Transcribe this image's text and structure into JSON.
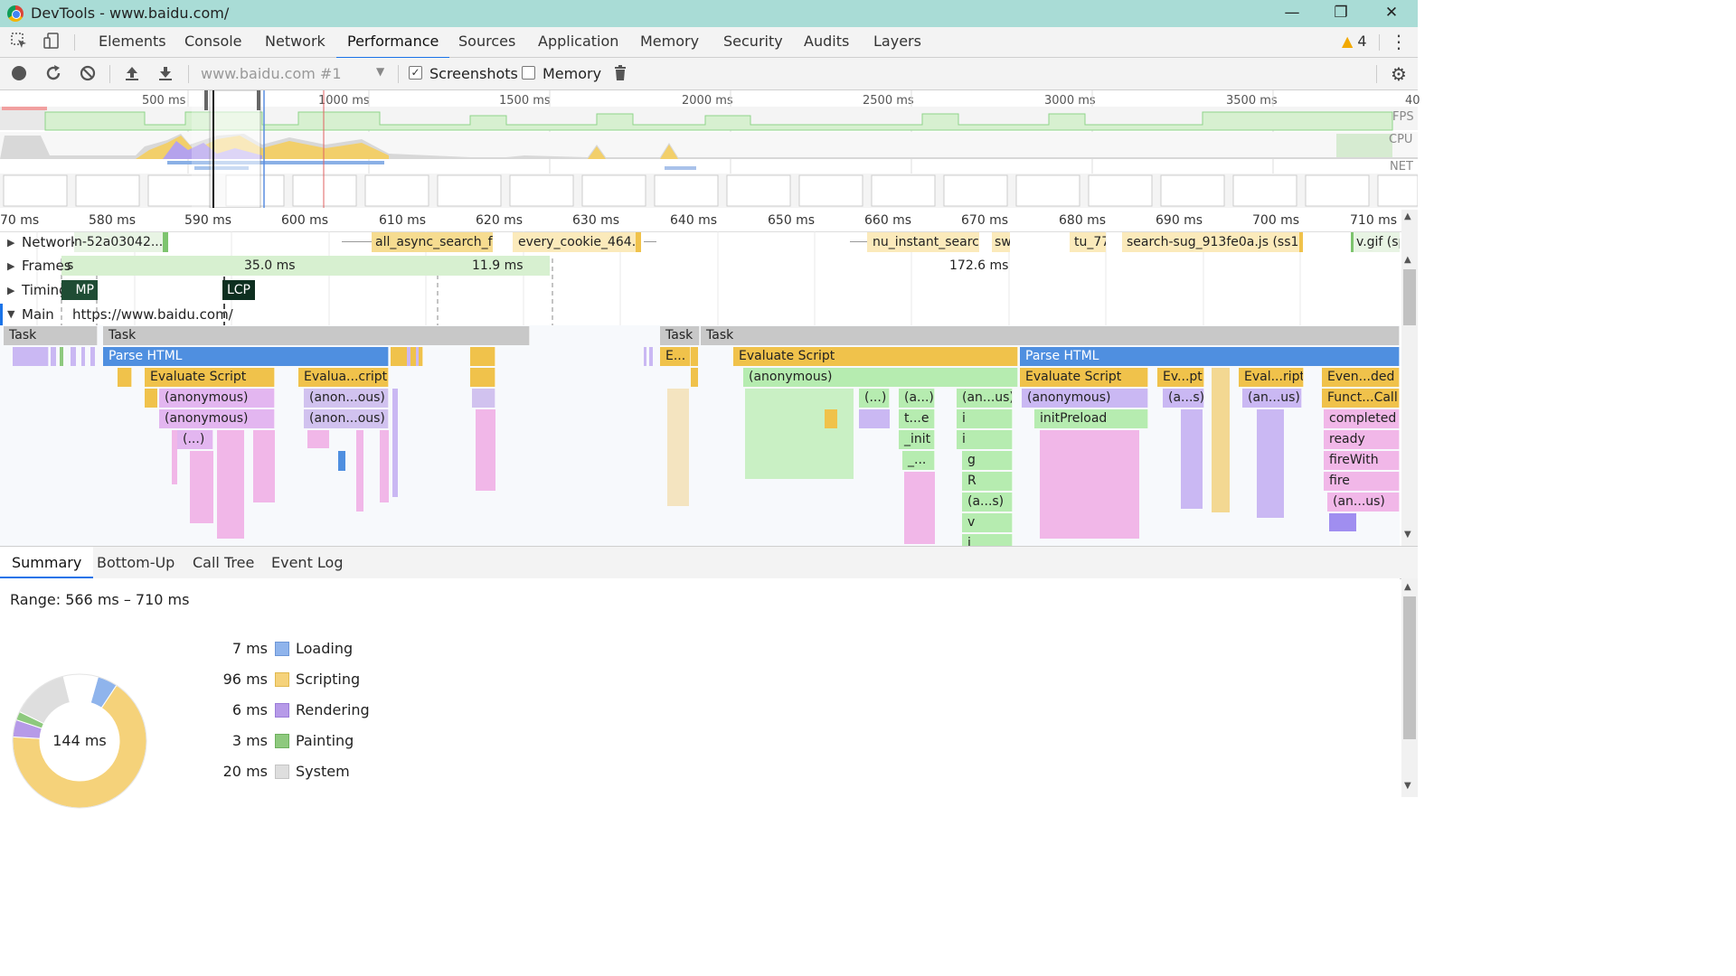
{
  "window": {
    "title": "DevTools - www.baidu.com/",
    "minimize": "—",
    "maximize": "❐",
    "close": "✕"
  },
  "tabs": [
    "Elements",
    "Console",
    "Network",
    "Performance",
    "Sources",
    "Application",
    "Memory",
    "Security",
    "Audits",
    "Layers"
  ],
  "active_tab": "Performance",
  "warnings": {
    "icon": "warning-icon",
    "count": "4"
  },
  "toolbar": {
    "profile_select": "www.baidu.com #1",
    "screenshots_label": "Screenshots",
    "screenshots_checked": true,
    "memory_label": "Memory",
    "memory_checked": false
  },
  "overview": {
    "ticks": [
      "500 ms",
      "1000 ms",
      "1500 ms",
      "2000 ms",
      "2500 ms",
      "3000 ms",
      "3500 ms",
      "40"
    ],
    "fps_label": "FPS",
    "cpu_label": "CPU",
    "net_label": "NET"
  },
  "ruler": {
    "ticks": [
      "70 ms",
      "580 ms",
      "590 ms",
      "600 ms",
      "610 ms",
      "620 ms",
      "630 ms",
      "640 ms",
      "650 ms",
      "660 ms",
      "670 ms",
      "680 ms",
      "690 ms",
      "700 ms",
      "710 ms"
    ]
  },
  "tracks": {
    "network": {
      "label": "Network",
      "items": [
        "n-52a03042...",
        "all_async_search_f2c",
        "every_cookie_464...",
        "nu_instant_search",
        "sw",
        "tu_77",
        "search-sug_913fe0a.js (ss1....",
        "v.gif (sp"
      ]
    },
    "frames": {
      "label": "Frames",
      "items": [
        "s",
        "35.0 ms",
        "11.9 ms",
        "172.6 ms"
      ]
    },
    "timings": {
      "label": "Timings",
      "items": [
        "MP",
        "LCP"
      ]
    },
    "main": {
      "label": "Main",
      "url": "https://www.baidu.com/"
    }
  },
  "flame": {
    "row0": [
      "Task",
      "Task",
      "Task",
      "Task"
    ],
    "row1": [
      "Parse HTML",
      "E...",
      "Evaluate Script",
      "Parse HTML"
    ],
    "row2": [
      "Evaluate Script",
      "Evalua...cript",
      "(anonymous)",
      "Evaluate Script",
      "Ev...pt",
      "Eval...ript",
      "Even...ded"
    ],
    "row3": [
      "(anonymous)",
      "(anon...ous)",
      "(...)",
      "(a...)",
      "(an...us)",
      "(anonymous)",
      "(a...s)",
      "(an...us)",
      "Funct...Call"
    ],
    "row4": [
      "(anonymous)",
      "(anon...ous)",
      "t...e",
      "i",
      "initPreload",
      "completed"
    ],
    "row5": [
      "(...)",
      "_init",
      "i",
      "ready"
    ],
    "row6": [
      "_...",
      "g",
      "fireWith"
    ],
    "row7": [
      "R",
      "fire"
    ],
    "row8": [
      "(a...s)",
      "(an...us)"
    ],
    "row9": [
      "v"
    ],
    "row10": [
      "i"
    ]
  },
  "bottom_tabs": [
    "Summary",
    "Bottom-Up",
    "Call Tree",
    "Event Log"
  ],
  "active_bottom_tab": "Summary",
  "summary": {
    "range": "Range: 566 ms – 710 ms",
    "total": "144 ms",
    "categories": [
      {
        "value": "7 ms",
        "label": "Loading",
        "color": "#8fb4ec"
      },
      {
        "value": "96 ms",
        "label": "Scripting",
        "color": "#f5d27a"
      },
      {
        "value": "6 ms",
        "label": "Rendering",
        "color": "#b69ae8"
      },
      {
        "value": "3 ms",
        "label": "Painting",
        "color": "#8ec97e"
      },
      {
        "value": "20 ms",
        "label": "System",
        "color": "#dedede"
      }
    ]
  },
  "colors": {
    "titlebar": "#a9dcd6",
    "accent": "#1a73e8",
    "parse_html": "#4f8fe0",
    "scripting": "#f0c24b",
    "task": "#c8c8c8"
  }
}
